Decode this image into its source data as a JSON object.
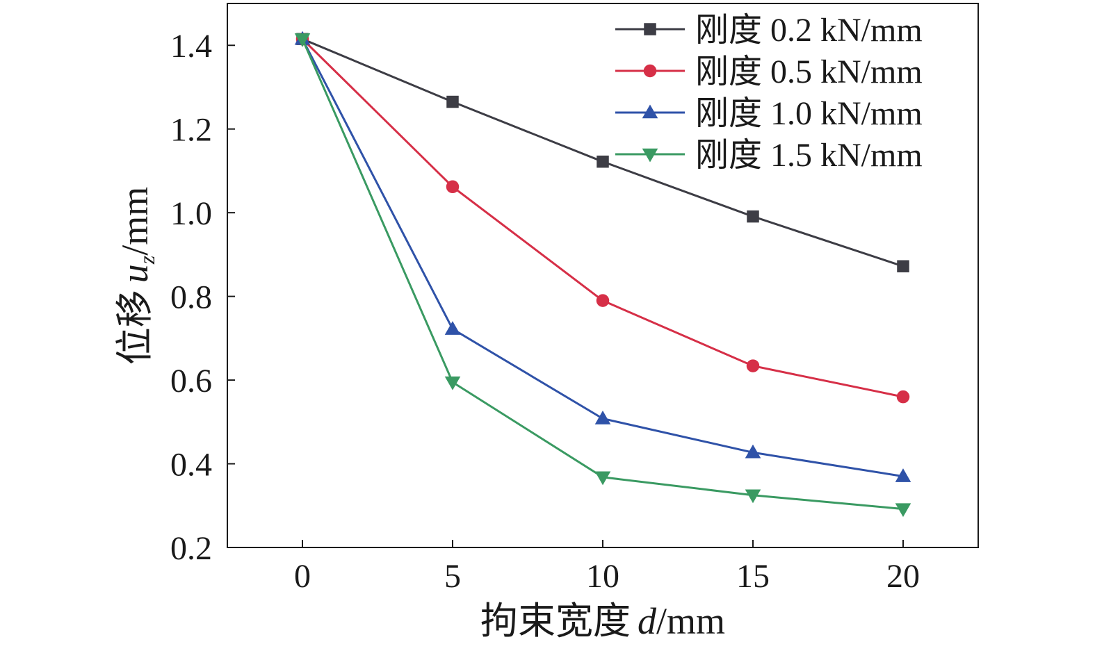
{
  "chart_data": {
    "type": "line",
    "xlabel_prefix": "拘束宽度",
    "xlabel_var": "d",
    "xlabel_unit": "/mm",
    "ylabel_prefix": "位移",
    "ylabel_var": "u",
    "ylabel_sub": "z",
    "ylabel_unit": "/mm",
    "xlim": [
      -2.5,
      22.5
    ],
    "ylim": [
      0.2,
      1.5
    ],
    "xticks": [
      "0",
      "5",
      "10",
      "15",
      "20"
    ],
    "yticks": [
      "0.2",
      "0.4",
      "0.6",
      "0.8",
      "1.0",
      "1.2",
      "1.4"
    ],
    "x": [
      0,
      5,
      10,
      15,
      20
    ],
    "legend_position": "top-right",
    "series": [
      {
        "name": "刚度 0.2 kN/mm",
        "color": "#3d3d45",
        "marker": "square",
        "values": [
          1.415,
          1.265,
          1.122,
          0.991,
          0.872
        ]
      },
      {
        "name": "刚度 0.5 kN/mm",
        "color": "#d62f47",
        "marker": "circle",
        "values": [
          1.415,
          1.062,
          0.79,
          0.634,
          0.56
        ]
      },
      {
        "name": "刚度 1.0 kN/mm",
        "color": "#2f52a8",
        "marker": "triangle-up",
        "values": [
          1.415,
          0.722,
          0.508,
          0.427,
          0.37
        ]
      },
      {
        "name": "刚度 1.5 kN/mm",
        "color": "#3a9a62",
        "marker": "triangle-down",
        "values": [
          1.415,
          0.595,
          0.368,
          0.325,
          0.292
        ]
      }
    ]
  }
}
